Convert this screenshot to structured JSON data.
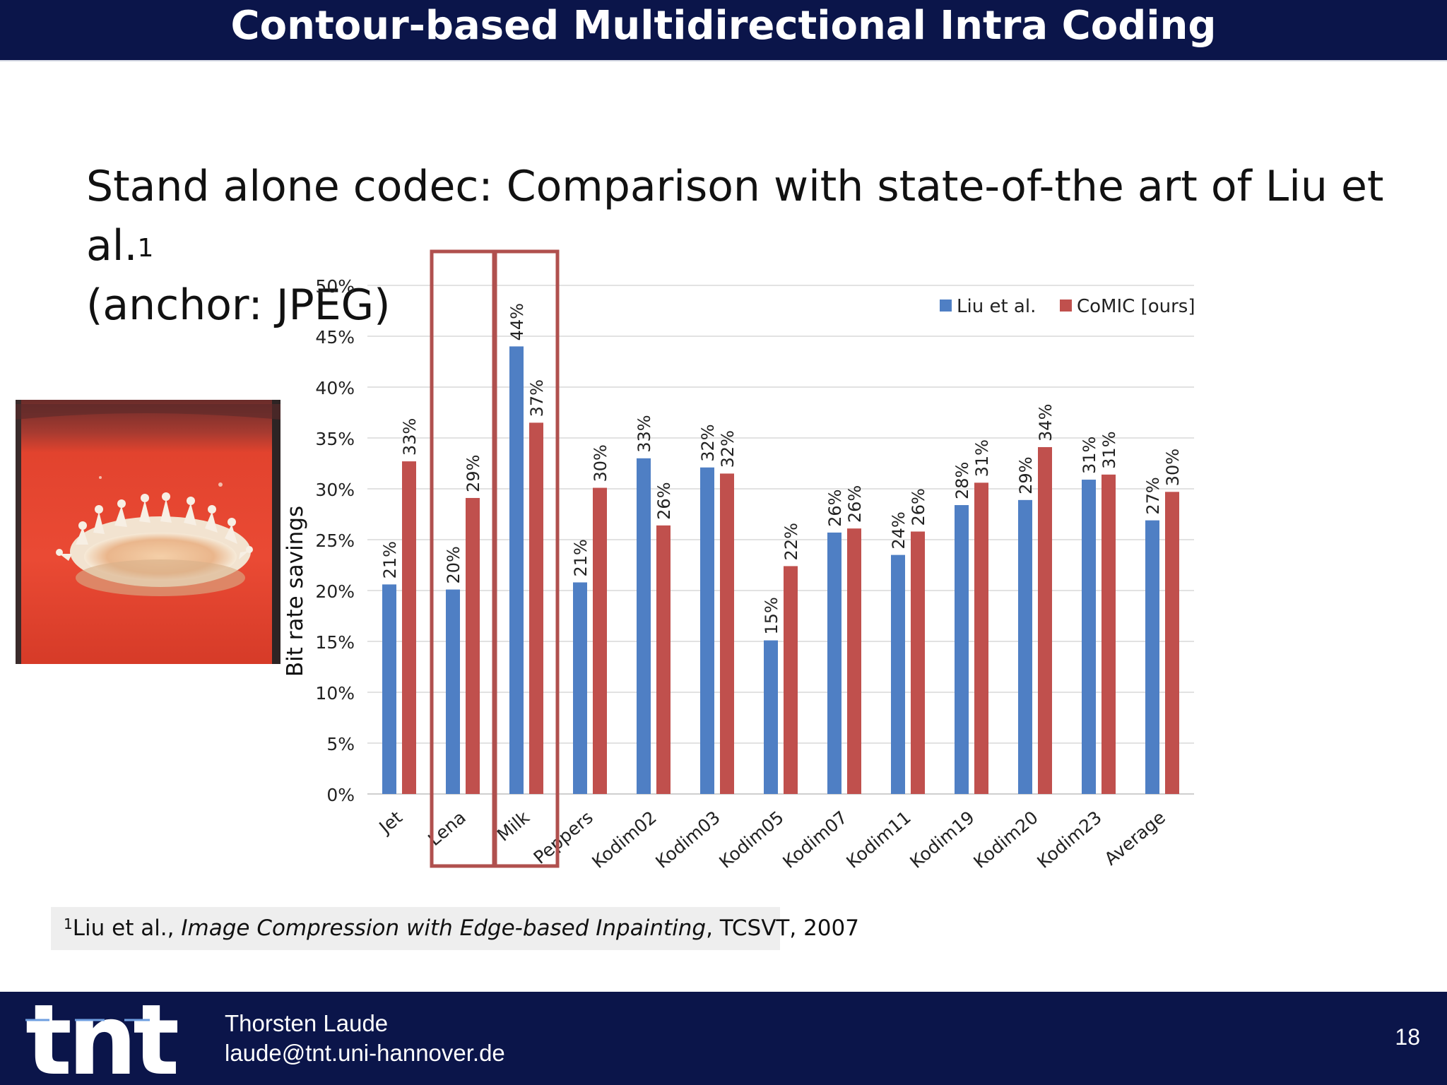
{
  "slide": {
    "title": "Contour-based Multidirectional Intra Coding",
    "heading_line1": "Stand alone codec: Comparison with state-of-the art of Liu et al.",
    "heading_sup": "1",
    "heading_line2": "(anchor: JPEG)",
    "footnote_num": "1",
    "footnote_authors": "Liu et al., ",
    "footnote_paper": "Image Compression with Edge-based Inpainting",
    "footnote_rest": ", TCSVT, 2007",
    "author_name": "Thorsten Laude",
    "author_email": "laude@tnt.uni-hannover.de",
    "page_number": "18",
    "logo_text": "tnt"
  },
  "colors": {
    "header_bg": "#0b154a",
    "liu": "#4f7fc4",
    "comic": "#c0504d",
    "highlight_box": "#b0504e"
  },
  "chart_data": {
    "type": "bar",
    "categories": [
      "Jet",
      "Lena",
      "Milk",
      "Peppers",
      "Kodim02",
      "Kodim03",
      "Kodim05",
      "Kodim07",
      "Kodim11",
      "Kodim19",
      "Kodim20",
      "Kodim23",
      "Average"
    ],
    "series": [
      {
        "name": "Liu et al.",
        "values": [
          20.6,
          20.1,
          44.0,
          20.8,
          33.0,
          32.1,
          15.1,
          25.7,
          23.5,
          28.4,
          28.9,
          30.9,
          26.9
        ],
        "labels": [
          "21%",
          "20%",
          "44%",
          "21%",
          "33%",
          "32%",
          "15%",
          "26%",
          "24%",
          "28%",
          "29%",
          "31%",
          "27%"
        ]
      },
      {
        "name": "CoMIC [ours]",
        "values": [
          32.7,
          29.1,
          36.5,
          30.1,
          26.4,
          31.5,
          22.4,
          26.1,
          25.8,
          30.6,
          34.1,
          31.4,
          29.7
        ],
        "labels": [
          "33%",
          "29%",
          "37%",
          "30%",
          "26%",
          "32%",
          "22%",
          "26%",
          "26%",
          "31%",
          "34%",
          "31%",
          "30%"
        ]
      }
    ],
    "ylabel": "Bit rate savings",
    "xlabel": "",
    "ylim": [
      0,
      50
    ],
    "yticks": [
      "0%",
      "5%",
      "10%",
      "15%",
      "20%",
      "25%",
      "30%",
      "35%",
      "40%",
      "45%",
      "50%"
    ],
    "grid": true,
    "legend": "top-right",
    "highlighted_categories": [
      "Lena",
      "Milk"
    ]
  }
}
